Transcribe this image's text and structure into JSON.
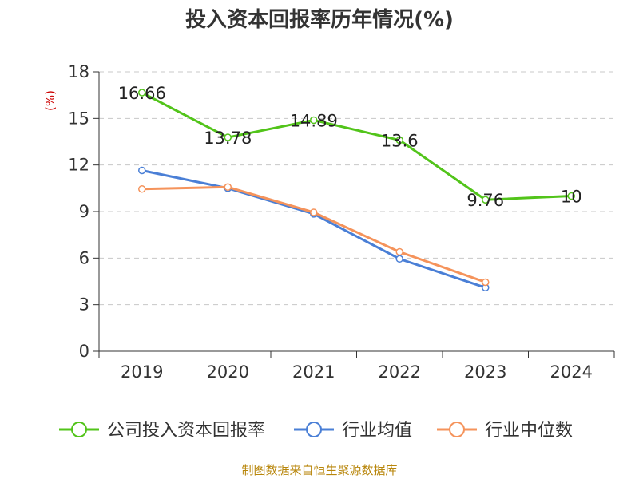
{
  "chart_data": {
    "type": "line",
    "title": "投入资本回报率历年情况(%)",
    "ylabel": "(%)",
    "xlabel": "",
    "categories": [
      "2019",
      "2020",
      "2021",
      "2022",
      "2023",
      "2024"
    ],
    "ylim": [
      0,
      18
    ],
    "yticks": [
      0,
      3,
      6,
      9,
      12,
      15,
      18
    ],
    "grid": true,
    "legend_position": "bottom",
    "series": [
      {
        "name": "公司投入资本回报率",
        "color": "#52c41a",
        "values": [
          16.66,
          13.78,
          14.89,
          13.6,
          9.76,
          10
        ],
        "labels": [
          "16.66",
          "13.78",
          "14.89",
          "13.6",
          "9.76",
          "10"
        ]
      },
      {
        "name": "行业均值",
        "color": "#4a7fd6",
        "values": [
          11.65,
          10.5,
          8.85,
          5.95,
          4.1,
          null
        ]
      },
      {
        "name": "行业中位数",
        "color": "#f5935b",
        "values": [
          10.45,
          10.58,
          8.95,
          6.4,
          4.45,
          null
        ]
      }
    ]
  },
  "source_text": "制图数据来自恒生聚源数据库"
}
